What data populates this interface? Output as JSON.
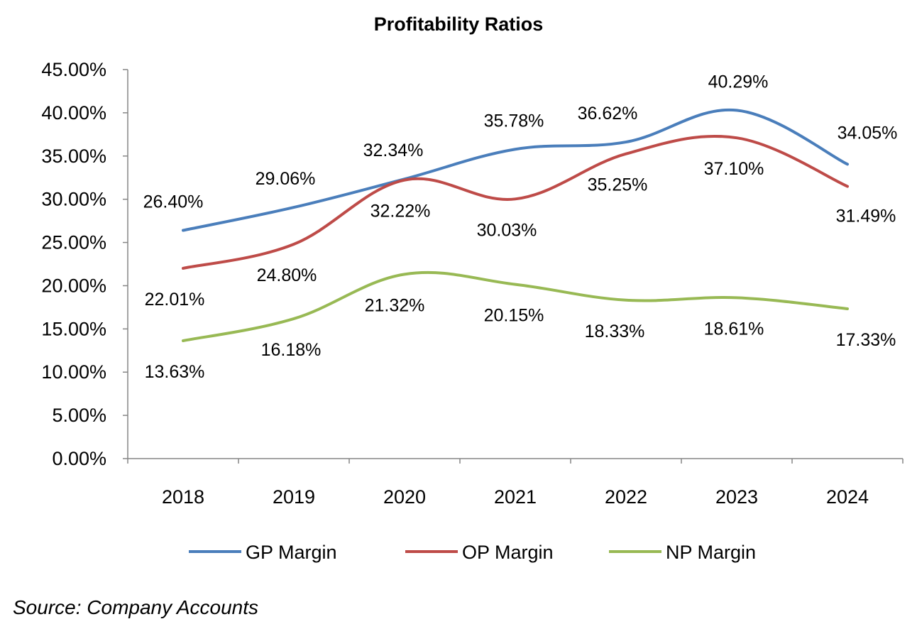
{
  "chart_data": {
    "type": "line",
    "title": "Profitability Ratios",
    "categories": [
      "2018",
      "2019",
      "2020",
      "2021",
      "2022",
      "2023",
      "2024"
    ],
    "y_ticks": [
      "0.00%",
      "5.00%",
      "10.00%",
      "15.00%",
      "20.00%",
      "25.00%",
      "30.00%",
      "35.00%",
      "40.00%",
      "45.00%"
    ],
    "ylim": [
      0,
      45
    ],
    "grid": false,
    "smooth": true,
    "legend_position": "bottom",
    "series": [
      {
        "name": "GP Margin",
        "color": "#4a7ebb",
        "values": [
          26.4,
          29.06,
          32.34,
          35.78,
          36.62,
          40.29,
          34.05
        ],
        "labels": [
          "26.40%",
          "29.06%",
          "32.34%",
          "35.78%",
          "36.62%",
          "40.29%",
          "34.05%"
        ]
      },
      {
        "name": "OP Margin",
        "color": "#be4b48",
        "values": [
          22.01,
          24.8,
          32.22,
          30.03,
          35.25,
          37.1,
          31.49
        ],
        "labels": [
          "22.01%",
          "24.80%",
          "32.22%",
          "30.03%",
          "35.25%",
          "37.10%",
          "31.49%"
        ]
      },
      {
        "name": "NP Margin",
        "color": "#98b954",
        "values": [
          13.63,
          16.18,
          21.32,
          20.15,
          18.33,
          18.61,
          17.33
        ],
        "labels": [
          "13.63%",
          "16.18%",
          "21.32%",
          "20.15%",
          "18.33%",
          "18.61%",
          "17.33%"
        ]
      }
    ]
  },
  "source_note": "Source: Company Accounts"
}
